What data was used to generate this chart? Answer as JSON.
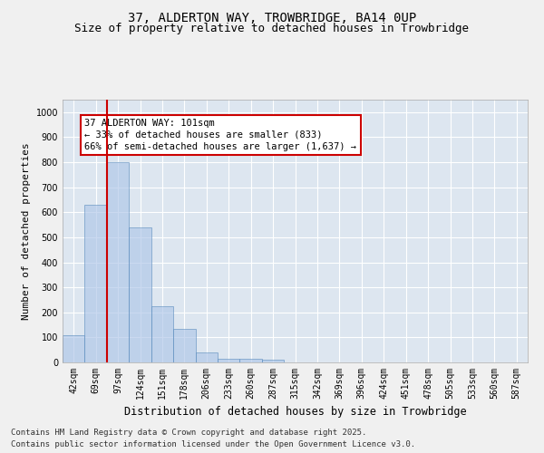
{
  "title_line1": "37, ALDERTON WAY, TROWBRIDGE, BA14 0UP",
  "title_line2": "Size of property relative to detached houses in Trowbridge",
  "xlabel": "Distribution of detached houses by size in Trowbridge",
  "ylabel": "Number of detached properties",
  "categories": [
    "42sqm",
    "69sqm",
    "97sqm",
    "124sqm",
    "151sqm",
    "178sqm",
    "206sqm",
    "233sqm",
    "260sqm",
    "287sqm",
    "315sqm",
    "342sqm",
    "369sqm",
    "396sqm",
    "424sqm",
    "451sqm",
    "478sqm",
    "505sqm",
    "533sqm",
    "560sqm",
    "587sqm"
  ],
  "values": [
    110,
    630,
    800,
    540,
    225,
    135,
    40,
    15,
    15,
    10,
    0,
    0,
    0,
    0,
    0,
    0,
    0,
    0,
    0,
    0,
    0
  ],
  "bar_color": "#aec6e8",
  "bar_edge_color": "#5588bb",
  "bar_alpha": 0.65,
  "vline_index": 2,
  "vline_color": "#cc0000",
  "annotation_text": "37 ALDERTON WAY: 101sqm\n← 33% of detached houses are smaller (833)\n66% of semi-detached houses are larger (1,637) →",
  "annotation_box_color": "#ffffff",
  "annotation_box_edge": "#cc0000",
  "ylim": [
    0,
    1050
  ],
  "yticks": [
    0,
    100,
    200,
    300,
    400,
    500,
    600,
    700,
    800,
    900,
    1000
  ],
  "background_color": "#dde6f0",
  "grid_color": "#ffffff",
  "footer_line1": "Contains HM Land Registry data © Crown copyright and database right 2025.",
  "footer_line2": "Contains public sector information licensed under the Open Government Licence v3.0.",
  "title_fontsize": 10,
  "subtitle_fontsize": 9,
  "axis_label_fontsize": 8,
  "tick_fontsize": 7,
  "annotation_fontsize": 7.5,
  "footer_fontsize": 6.5
}
